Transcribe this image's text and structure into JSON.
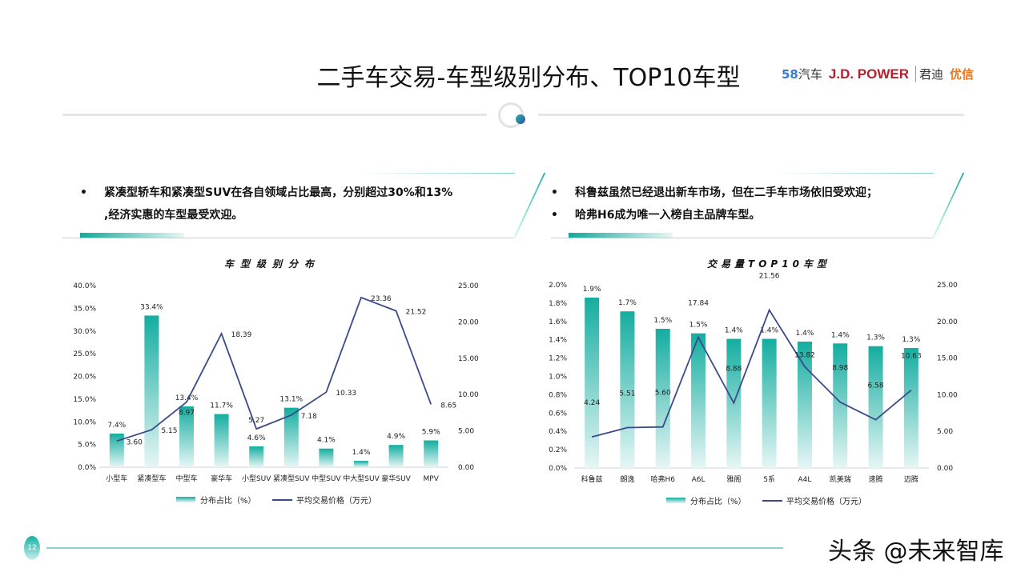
{
  "header": {
    "title": "二手车交易-车型级别分布、TOP10车型",
    "page_number": "12",
    "watermark": "头条 @未来智库"
  },
  "logos": {
    "l58": "58",
    "l58_text": "汽车",
    "jd": "J.D. POWER",
    "jun": "君迪",
    "yx": "优信"
  },
  "left_box": {
    "bullets": [
      "紧凑型轿车和紧凑型SUV在各自领域占比最高，分别超过30%和13%",
      ",经济实惠的车型最受欢迎。"
    ],
    "dot": "•"
  },
  "right_box": {
    "bullets": [
      "科鲁兹虽然已经退出新车市场，但在二手车市场依旧受欢迎；",
      "哈弗H6成为唯一入榜自主品牌车型。"
    ],
    "dot": "•"
  },
  "colors": {
    "bar": "#14ada0",
    "line": "#3b4a8a"
  },
  "chart_data": [
    {
      "type": "bar+line",
      "title": "车型级别分布",
      "categories": [
        "小型车",
        "紧凑型车",
        "中型车",
        "豪华车",
        "小型SUV",
        "紧凑型SUV",
        "中型SUV",
        "中大型SUV",
        "豪华SUV",
        "MPV"
      ],
      "series": [
        {
          "name": "分布占比（%）",
          "type": "bar",
          "axis": "left",
          "values": [
            7.4,
            33.4,
            13.4,
            11.7,
            4.6,
            13.1,
            4.1,
            1.4,
            4.9,
            5.9
          ],
          "labels": [
            "7.4%",
            "33.4%",
            "13.4%",
            "11.7%",
            "4.6%",
            "13.1%",
            "4.1%",
            "1.4%",
            "4.9%",
            "5.9%"
          ]
        },
        {
          "name": "平均交易价格（万元）",
          "type": "line",
          "axis": "right",
          "values": [
            3.6,
            5.15,
            8.97,
            18.39,
            5.27,
            7.18,
            10.33,
            23.36,
            21.52,
            8.65
          ],
          "labels": [
            "3.60",
            "5.15",
            "8.97",
            "18.39",
            "5.27",
            "7.18",
            "10.33",
            "23.36",
            "21.52",
            "8.65"
          ]
        }
      ],
      "yleft": {
        "lim": [
          0,
          40
        ],
        "ticks": [
          "0.0%",
          "5.0%",
          "10.0%",
          "15.0%",
          "20.0%",
          "25.0%",
          "30.0%",
          "35.0%",
          "40.0%"
        ]
      },
      "yright": {
        "lim": [
          0,
          25
        ],
        "ticks": [
          "0.00",
          "5.00",
          "10.00",
          "15.00",
          "20.00",
          "25.00"
        ]
      },
      "legend": "bottom"
    },
    {
      "type": "bar+line",
      "title": "交易量TOP10车型",
      "categories": [
        "科鲁兹",
        "朗逸",
        "哈弗H6",
        "A6L",
        "雅阁",
        "5系",
        "A4L",
        "凯美瑞",
        "速腾",
        "迈腾"
      ],
      "series": [
        {
          "name": "分布占比（%）",
          "type": "bar",
          "axis": "left",
          "values": [
            1.86,
            1.71,
            1.52,
            1.47,
            1.41,
            1.41,
            1.38,
            1.36,
            1.33,
            1.31
          ],
          "labels": [
            "1.9%",
            "1.7%",
            "1.5%",
            "1.5%",
            "1.4%",
            "1.4%",
            "1.4%",
            "1.4%",
            "1.3%",
            "1.3%"
          ]
        },
        {
          "name": "平均交易价格（万元）",
          "type": "line",
          "axis": "right",
          "values": [
            4.24,
            5.51,
            5.6,
            17.84,
            8.88,
            21.56,
            13.82,
            8.98,
            6.58,
            10.63
          ],
          "labels": [
            "4.24",
            "5.51",
            "5.60",
            "17.84",
            "8.88",
            "21.56",
            "13.82",
            "8.98",
            "6.58",
            "10.63"
          ]
        }
      ],
      "yleft": {
        "lim": [
          0,
          2
        ],
        "ticks": [
          "0.0%",
          "0.2%",
          "0.4%",
          "0.6%",
          "0.8%",
          "1.0%",
          "1.2%",
          "1.4%",
          "1.6%",
          "1.8%",
          "2.0%"
        ]
      },
      "yright": {
        "lim": [
          0,
          25
        ],
        "ticks": [
          "0.00",
          "5.00",
          "10.00",
          "15.00",
          "20.00",
          "25.00"
        ]
      },
      "legend": "bottom"
    }
  ]
}
